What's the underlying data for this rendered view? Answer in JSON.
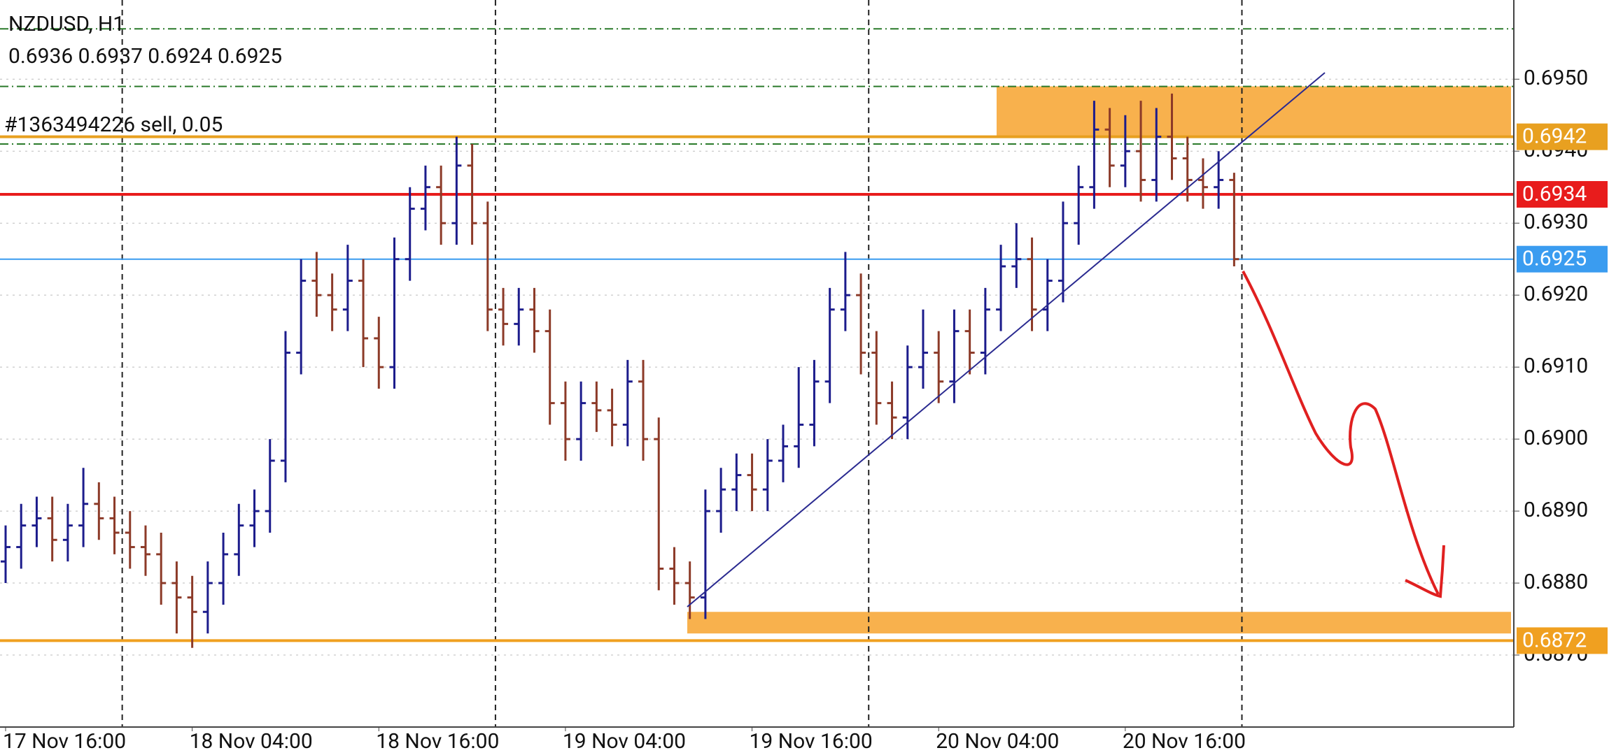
{
  "chart_data": {
    "type": "ohlc",
    "title": "NZDUSD, H1",
    "ohlc_text": "0.6936 0.6937 0.6924 0.6925",
    "order_text": "#1363494226 sell, 0.05",
    "categories": [
      "17 Nov 16:00",
      null,
      null,
      null,
      null,
      null,
      null,
      null,
      null,
      null,
      null,
      null,
      "18 Nov 04:00",
      null,
      null,
      null,
      null,
      null,
      null,
      null,
      null,
      null,
      null,
      null,
      "18 Nov 16:00",
      null,
      null,
      null,
      null,
      null,
      null,
      null,
      null,
      null,
      null,
      null,
      "19 Nov 04:00",
      null,
      null,
      null,
      null,
      null,
      null,
      null,
      null,
      null,
      null,
      null,
      "19 Nov 16:00",
      null,
      null,
      null,
      null,
      null,
      null,
      null,
      null,
      null,
      null,
      null,
      "20 Nov 04:00",
      null,
      null,
      null,
      null,
      null,
      null,
      null,
      null,
      null,
      null,
      null,
      "20 Nov 16:00",
      null,
      null,
      null,
      null,
      null,
      null,
      null
    ],
    "open": [
      0.6883,
      0.6885,
      0.6888,
      0.6889,
      0.6886,
      0.6888,
      0.6891,
      0.6889,
      0.6887,
      0.6885,
      0.6884,
      0.688,
      0.6878,
      0.6876,
      0.688,
      0.6884,
      0.6888,
      0.689,
      0.6897,
      0.6912,
      0.6922,
      0.692,
      0.6918,
      0.6922,
      0.6914,
      0.691,
      0.6925,
      0.6932,
      0.6935,
      0.693,
      0.6938,
      0.693,
      0.6918,
      0.6916,
      0.6918,
      0.6915,
      0.6905,
      0.69,
      0.6905,
      0.6904,
      0.6902,
      0.6908,
      0.69,
      0.6882,
      0.688,
      0.6878,
      0.689,
      0.6893,
      0.6895,
      0.6893,
      0.6897,
      0.6899,
      0.6902,
      0.6908,
      0.6918,
      0.692,
      0.6912,
      0.6905,
      0.6903,
      0.691,
      0.6912,
      0.6908,
      0.6915,
      0.6912,
      0.6918,
      0.6924,
      0.6925,
      0.6918,
      0.6922,
      0.693,
      0.6935,
      0.6943,
      0.6938,
      0.694,
      0.6936,
      0.6942,
      0.6939,
      0.6936,
      0.6935,
      0.6936
    ],
    "high": [
      0.6888,
      0.6891,
      0.6892,
      0.6892,
      0.6891,
      0.6896,
      0.6894,
      0.6892,
      0.689,
      0.6888,
      0.6887,
      0.6883,
      0.6881,
      0.6883,
      0.6887,
      0.6891,
      0.6893,
      0.69,
      0.6915,
      0.6925,
      0.6926,
      0.6923,
      0.6927,
      0.6925,
      0.6917,
      0.6928,
      0.6935,
      0.6938,
      0.6938,
      0.6942,
      0.6941,
      0.6933,
      0.6921,
      0.6921,
      0.6921,
      0.6918,
      0.6908,
      0.6908,
      0.6908,
      0.6907,
      0.6911,
      0.6911,
      0.6903,
      0.6885,
      0.6883,
      0.6893,
      0.6896,
      0.6898,
      0.6898,
      0.69,
      0.6902,
      0.691,
      0.6911,
      0.6921,
      0.6926,
      0.6923,
      0.6915,
      0.6908,
      0.6913,
      0.6918,
      0.6915,
      0.6918,
      0.6918,
      0.6921,
      0.6927,
      0.693,
      0.6928,
      0.6925,
      0.6933,
      0.6938,
      0.6947,
      0.6946,
      0.6945,
      0.6947,
      0.6946,
      0.6948,
      0.6942,
      0.6939,
      0.694,
      0.6937
    ],
    "low": [
      0.688,
      0.6882,
      0.6885,
      0.6883,
      0.6883,
      0.6885,
      0.6886,
      0.6884,
      0.6882,
      0.6881,
      0.6877,
      0.6873,
      0.6871,
      0.6873,
      0.6877,
      0.6881,
      0.6885,
      0.6887,
      0.6894,
      0.6909,
      0.6917,
      0.6915,
      0.6915,
      0.691,
      0.6907,
      0.6907,
      0.6922,
      0.6929,
      0.6927,
      0.6927,
      0.6927,
      0.6915,
      0.6913,
      0.6913,
      0.6912,
      0.6902,
      0.6897,
      0.6897,
      0.6901,
      0.6899,
      0.6899,
      0.6897,
      0.6879,
      0.6877,
      0.6875,
      0.6875,
      0.6887,
      0.689,
      0.689,
      0.689,
      0.6894,
      0.6896,
      0.6899,
      0.6905,
      0.6915,
      0.6909,
      0.6902,
      0.69,
      0.69,
      0.6907,
      0.6905,
      0.6905,
      0.6909,
      0.6909,
      0.6915,
      0.6921,
      0.6915,
      0.6915,
      0.6919,
      0.6927,
      0.6932,
      0.6935,
      0.6935,
      0.6933,
      0.6933,
      0.6936,
      0.6933,
      0.6932,
      0.6932,
      0.6924
    ],
    "close": [
      0.6885,
      0.6888,
      0.6889,
      0.6886,
      0.6888,
      0.6891,
      0.6889,
      0.6887,
      0.6885,
      0.6884,
      0.688,
      0.6878,
      0.6876,
      0.688,
      0.6884,
      0.6888,
      0.689,
      0.6897,
      0.6912,
      0.6922,
      0.692,
      0.6918,
      0.6922,
      0.6914,
      0.691,
      0.6925,
      0.6932,
      0.6935,
      0.693,
      0.6938,
      0.693,
      0.6918,
      0.6916,
      0.6918,
      0.6915,
      0.6905,
      0.69,
      0.6905,
      0.6904,
      0.6902,
      0.6908,
      0.69,
      0.6882,
      0.688,
      0.6878,
      0.689,
      0.6893,
      0.6895,
      0.6893,
      0.6897,
      0.6899,
      0.6902,
      0.6908,
      0.6918,
      0.692,
      0.6912,
      0.6905,
      0.6903,
      0.691,
      0.6912,
      0.6908,
      0.6915,
      0.6912,
      0.6918,
      0.6924,
      0.6925,
      0.6918,
      0.6922,
      0.693,
      0.6935,
      0.6943,
      0.6938,
      0.694,
      0.6936,
      0.6942,
      0.6939,
      0.6936,
      0.6935,
      0.6936,
      0.6925
    ],
    "up_color": "#1c1c8c",
    "down_color": "#8c3a28",
    "ylim": [
      0.686,
      0.6961
    ],
    "yticks": [
      {
        "value": 0.687,
        "label": "0.6870"
      },
      {
        "value": 0.688,
        "label": "0.6880"
      },
      {
        "value": 0.689,
        "label": "0.6890"
      },
      {
        "value": 0.69,
        "label": "0.6900"
      },
      {
        "value": 0.691,
        "label": "0.6910"
      },
      {
        "value": 0.692,
        "label": "0.6920"
      },
      {
        "value": 0.693,
        "label": "0.6930"
      },
      {
        "value": 0.694,
        "label": "0.6940"
      },
      {
        "value": 0.695,
        "label": "0.6950"
      }
    ],
    "grid": true,
    "levels": [
      {
        "value": 0.6942,
        "color": "#e8a020"
      },
      {
        "value": 0.6934,
        "color": "#e81c1c"
      },
      {
        "value": 0.6925,
        "color": "#3a9cf0"
      },
      {
        "value": 0.6872,
        "color": "#f0a020"
      }
    ],
    "order_levels": [
      0.6957,
      0.6949,
      0.6941
    ],
    "zones": [
      {
        "low": 0.6942,
        "high": 0.6949
      },
      {
        "low": 0.6873,
        "high": 0.6876
      }
    ]
  }
}
